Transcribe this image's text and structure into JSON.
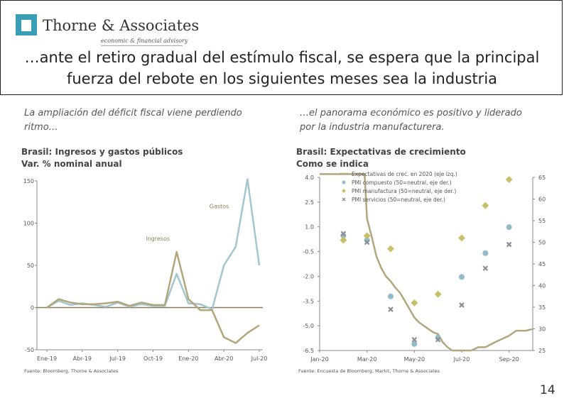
{
  "brand": {
    "name": "Thorne & Associates",
    "tagline": "economic & financial advisory",
    "mark_color": "#3a9fb5"
  },
  "headline": {
    "line1": "…ante el retiro gradual del estímulo fiscal, se espera que la principal",
    "line2": "fuerza del rebote en los siguientes meses sea la industria"
  },
  "left": {
    "intro_line1": "La ampliación del déficit fiscal viene perdiendo",
    "intro_line2": "ritmo…",
    "title_line1": "Brasil: Ingresos y gastos públicos",
    "title_line2": "Var. % nominal anual",
    "source": "Fuente: Bloomberg, Thorne & Associates"
  },
  "right": {
    "intro_line1": "…el panorama económico es positivo y liderado",
    "intro_line2": "por la industria manufacturera.",
    "title_line1": "Brasil: Expectativas de crecimiento",
    "title_line2": "Como se indica",
    "source": "Fuente: Encuesta de Bloomberg, Markit, Thorne & Associates"
  },
  "page_number": "14",
  "chart_data": [
    {
      "type": "line",
      "title": "Brasil: Ingresos y gastos públicos",
      "subtitle": "Var. % nominal anual",
      "ylim": [
        -50,
        150
      ],
      "yticks": [
        "150",
        "100",
        "50",
        "0",
        "-50"
      ],
      "ytick_values": [
        150,
        100,
        50,
        0,
        -50
      ],
      "xticks": [
        {
          "label": "Ene-19",
          "i": 0
        },
        {
          "label": "Abr-19",
          "i": 3
        },
        {
          "label": "Jul-19",
          "i": 6
        },
        {
          "label": "Oct-19",
          "i": 9
        },
        {
          "label": "Ene-20",
          "i": 12
        },
        {
          "label": "Abr-20",
          "i": 15
        },
        {
          "label": "Jul-20",
          "i": 18
        }
      ],
      "series": [
        {
          "name": "Gastos",
          "color": "#a3c6cf",
          "values": [
            0,
            8,
            3,
            5,
            3,
            1,
            6,
            1,
            4,
            2,
            2,
            40,
            5,
            4,
            -2,
            50,
            72,
            152,
            50
          ]
        },
        {
          "name": "Ingresos",
          "color": "#b3a67c",
          "values": [
            0,
            10,
            6,
            4,
            4,
            5,
            7,
            2,
            6,
            3,
            3,
            66,
            10,
            -3,
            -3,
            -35,
            -42,
            -30,
            -21
          ]
        }
      ]
    },
    {
      "type": "line",
      "title": "Brasil: Expectativas de crecimiento",
      "subtitle": "Como se indica",
      "y_left_lim": [
        -6.5,
        4.0
      ],
      "y_left_ticks": [
        "4.0",
        "2.5",
        "1.0",
        "-0.5",
        "-2.0",
        "-3.5",
        "-5.0",
        "-6.5"
      ],
      "y_left_values": [
        4.0,
        2.5,
        1.0,
        -0.5,
        -2.0,
        -3.5,
        -5.0,
        -6.5
      ],
      "y_right_lim": [
        25,
        65
      ],
      "y_right_ticks": [
        "65",
        "60",
        "55",
        "50",
        "45",
        "40",
        "35",
        "30",
        "25"
      ],
      "y_right_values": [
        65,
        60,
        55,
        50,
        45,
        40,
        35,
        30,
        25
      ],
      "xticks": [
        {
          "label": "Jan-20",
          "m": 0
        },
        {
          "label": "Mar-20",
          "m": 2
        },
        {
          "label": "May-20",
          "m": 4
        },
        {
          "label": "Jul-20",
          "m": 6
        },
        {
          "label": "Sep-20",
          "m": 8
        }
      ],
      "legend": {
        "placement": "top-left",
        "items": [
          "Expectativas de crec. en 2020 (eje izq.)",
          "PMI compuesto (50=neutral, eje der.)",
          "PMI manufactura (50=neutral, eje der.)",
          "PMI servicios (50=neutral, eje der.)"
        ]
      },
      "expectations": {
        "name": "Expectativas de crec. en 2020 (eje izq.)",
        "color": "#b3a67c",
        "points": [
          [
            0,
            4.2
          ],
          [
            1.0,
            4.2
          ],
          [
            1.9,
            4.2
          ],
          [
            2.0,
            1.5
          ],
          [
            2.2,
            0.4
          ],
          [
            2.4,
            -0.8
          ],
          [
            2.6,
            -1.5
          ],
          [
            2.8,
            -2.0
          ],
          [
            3.0,
            -2.3
          ],
          [
            3.2,
            -2.7
          ],
          [
            3.4,
            -3.0
          ],
          [
            3.6,
            -3.5
          ],
          [
            3.8,
            -4.0
          ],
          [
            4.0,
            -4.5
          ],
          [
            4.2,
            -4.8
          ],
          [
            4.4,
            -5.0
          ],
          [
            4.6,
            -5.2
          ],
          [
            4.8,
            -5.4
          ],
          [
            5.0,
            -5.5
          ],
          [
            5.2,
            -6.0
          ],
          [
            5.4,
            -6.3
          ],
          [
            5.6,
            -6.5
          ],
          [
            6.0,
            -6.5
          ],
          [
            6.4,
            -6.5
          ],
          [
            6.7,
            -6.3
          ],
          [
            7.0,
            -6.3
          ],
          [
            7.4,
            -6.0
          ],
          [
            7.7,
            -5.8
          ],
          [
            8.0,
            -5.6
          ],
          [
            8.3,
            -5.3
          ],
          [
            8.7,
            -5.3
          ],
          [
            9.0,
            -5.2
          ]
        ]
      },
      "pmi_compuesto": {
        "name": "PMI compuesto (50=neutral, eje der.)",
        "color": "#93bcc8",
        "points": [
          [
            1,
            51.5
          ],
          [
            2,
            50.5
          ],
          [
            3,
            37.5
          ],
          [
            4,
            26.5
          ],
          [
            5,
            28.0
          ],
          [
            6,
            42.0
          ],
          [
            7,
            47.5
          ],
          [
            8,
            53.5
          ]
        ]
      },
      "pmi_manufactura": {
        "name": "PMI manufactura (50=neutral, eje der.)",
        "color": "#c8c067",
        "points": [
          [
            1,
            50.5
          ],
          [
            2,
            51.5
          ],
          [
            3,
            48.5
          ],
          [
            4,
            36.0
          ],
          [
            5,
            38.0
          ],
          [
            6,
            51.0
          ],
          [
            7,
            58.5
          ],
          [
            8,
            64.5
          ]
        ]
      },
      "pmi_servicios": {
        "name": "PMI servicios (50=neutral, eje der.)",
        "color": "#8a8f97",
        "points": [
          [
            1,
            52.0
          ],
          [
            2,
            50.0
          ],
          [
            3,
            34.5
          ],
          [
            4,
            27.5
          ],
          [
            5,
            27.5
          ],
          [
            6,
            35.5
          ],
          [
            7,
            44.0
          ],
          [
            8,
            49.5
          ]
        ]
      }
    }
  ]
}
